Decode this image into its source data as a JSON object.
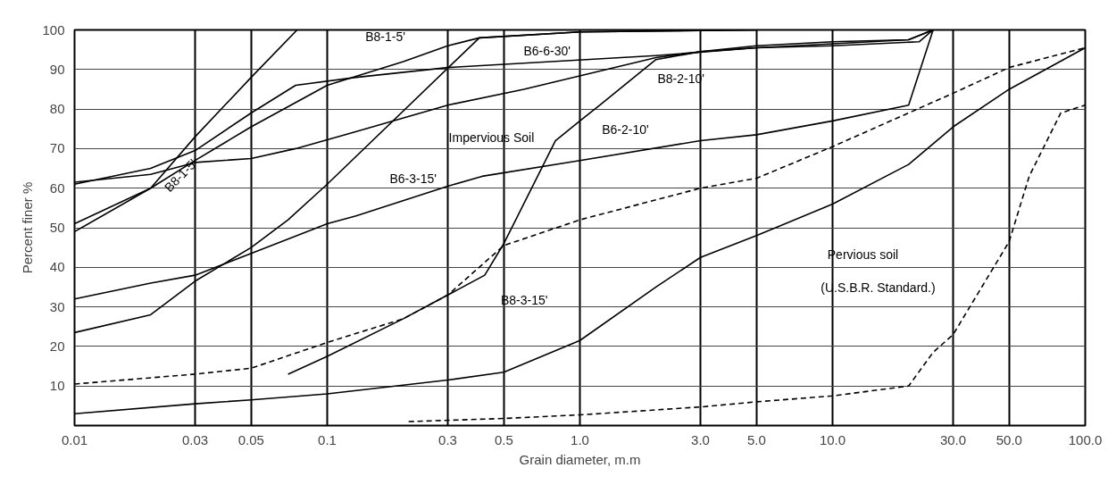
{
  "chart_data": {
    "type": "line",
    "xlabel": "Grain diameter, m.m",
    "ylabel": "Percent finer %",
    "log": "x",
    "xlim": [
      0.01,
      100
    ],
    "ylim": [
      0,
      100
    ],
    "xticks": [
      {
        "value": 0.01,
        "label": "0.01"
      },
      {
        "value": 0.03,
        "label": "0.03"
      },
      {
        "value": 0.05,
        "label": "0.05"
      },
      {
        "value": 0.1,
        "label": "0.1"
      },
      {
        "value": 0.3,
        "label": "0.3"
      },
      {
        "value": 0.5,
        "label": "0.5"
      },
      {
        "value": 1,
        "label": "1.0"
      },
      {
        "value": 3,
        "label": "3.0"
      },
      {
        "value": 5,
        "label": "5.0"
      },
      {
        "value": 10,
        "label": "10.0"
      },
      {
        "value": 30,
        "label": "30.0"
      },
      {
        "value": 50,
        "label": "50.0"
      },
      {
        "value": 100,
        "label": "100.0"
      }
    ],
    "yticks": [
      10,
      20,
      30,
      40,
      50,
      60,
      70,
      80,
      90,
      100
    ],
    "grid": true,
    "marker": "none",
    "series": [
      {
        "color": "#000000",
        "x": [
          0.01,
          0.02,
          0.03,
          0.05,
          0.076
        ],
        "values": [
          49,
          60,
          73,
          88,
          100
        ]
      },
      {
        "color": "#000000",
        "x": [
          0.01,
          0.02,
          0.03,
          0.05,
          0.1,
          0.2,
          0.3,
          0.4,
          1.0,
          5
        ],
        "values": [
          51,
          60,
          67,
          75.5,
          86,
          92,
          96,
          98,
          99.5,
          100
        ]
      },
      {
        "color": "#000000",
        "x": [
          0.01,
          0.02,
          0.03,
          0.05,
          0.075,
          0.13,
          0.3,
          2,
          5,
          10,
          22,
          25
        ],
        "values": [
          61,
          65,
          69.5,
          79,
          86,
          88,
          90.5,
          93.5,
          95.5,
          96,
          97,
          100
        ]
      },
      {
        "color": "#000000",
        "x": [
          0.01,
          0.02,
          0.03,
          0.05,
          0.075,
          0.125,
          0.3,
          0.6,
          2,
          3,
          5,
          10,
          20,
          25
        ],
        "values": [
          61.5,
          63.5,
          66.5,
          67.5,
          70,
          74,
          81,
          85,
          93,
          94.5,
          95.5,
          96.5,
          97.5,
          100
        ]
      },
      {
        "color": "#000000",
        "x": [
          0.01,
          0.02,
          0.03,
          0.05,
          0.1,
          0.13,
          0.3,
          0.41,
          1.0,
          3,
          5,
          10,
          20,
          25
        ],
        "values": [
          32,
          36,
          38,
          43.5,
          51,
          53,
          60.5,
          63,
          67,
          72,
          73.5,
          77,
          81,
          100
        ]
      },
      {
        "color": "#000000",
        "x": [
          0.01,
          0.02,
          0.03,
          0.05,
          0.07,
          0.1,
          0.4,
          1.0,
          5
        ],
        "values": [
          23.5,
          28,
          36.5,
          45,
          52,
          61,
          98,
          99.5,
          100
        ]
      },
      {
        "color": "#000000",
        "x": [
          0.07,
          0.1,
          0.2,
          0.42,
          0.5,
          0.8,
          1.0,
          1.2,
          2,
          3,
          5,
          10,
          20,
          25
        ],
        "values": [
          13,
          17.5,
          27,
          38,
          46,
          72,
          77,
          81,
          92.5,
          94.5,
          96,
          97,
          97.5,
          100
        ]
      },
      {
        "color": "#000000",
        "line_style": "dashed",
        "x": [
          0.01,
          0.03,
          0.05,
          0.1,
          0.2,
          0.3,
          0.5,
          1.0,
          3,
          5,
          10,
          30,
          50,
          100
        ],
        "values": [
          10.5,
          13,
          14.5,
          21,
          27,
          33,
          45.5,
          52,
          60,
          62.5,
          70.5,
          84,
          90.5,
          95.5
        ]
      },
      {
        "color": "#000000",
        "x": [
          0.01,
          0.03,
          0.05,
          0.1,
          0.3,
          0.5,
          1.0,
          2,
          3,
          5,
          10,
          20,
          30,
          50,
          100
        ],
        "values": [
          3,
          5.5,
          6.5,
          8,
          11.5,
          13.5,
          21.5,
          35,
          42.5,
          48,
          56,
          66,
          75.5,
          85,
          95.5
        ]
      },
      {
        "color": "#000000",
        "line_style": "dashed",
        "x": [
          0.21,
          0.5,
          1.0,
          3,
          5,
          10,
          20,
          25,
          30,
          50,
          60,
          80,
          100
        ],
        "values": [
          1,
          1.8,
          2.7,
          4.7,
          6,
          7.5,
          10,
          18.5,
          23,
          46.5,
          63,
          79,
          81
        ]
      }
    ],
    "annotations": [
      "B8-1-5'",
      "B8-1-5'",
      "B6-6-30'",
      "B8-2-10'",
      "B6-3-15'",
      "Impervious Soil",
      "B6-2-10'",
      "B8-3-15'",
      "Pervious soil",
      "(U.S.B.R. Standard.)"
    ]
  }
}
